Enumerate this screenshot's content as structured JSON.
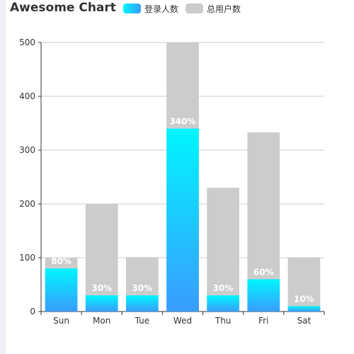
{
  "chart_data": {
    "type": "bar",
    "title": "Awesome Chart",
    "categories": [
      "Sun",
      "Mon",
      "Tue",
      "Wed",
      "Thu",
      "Fri",
      "Sat"
    ],
    "series": [
      {
        "name": "登录人数",
        "values": [
          80,
          30,
          30,
          340,
          30,
          60,
          10
        ]
      },
      {
        "name": "总用户数",
        "values": [
          100,
          200,
          101,
          500,
          230,
          333,
          100
        ]
      }
    ],
    "data_labels": [
      "80%",
      "30%",
      "30%",
      "340%",
      "30%",
      "60%",
      "10%"
    ],
    "ylim": [
      0,
      500
    ],
    "yticks": [
      0,
      100,
      200,
      300,
      400,
      500
    ],
    "xlabel": "",
    "ylabel": "",
    "grid": true,
    "legend_position": "top",
    "colors": {
      "login_top": "#00f6ff",
      "login_bottom": "#3a9cff",
      "total": "#cccccc",
      "axis": "#333333",
      "grid": "#cccccc"
    }
  }
}
